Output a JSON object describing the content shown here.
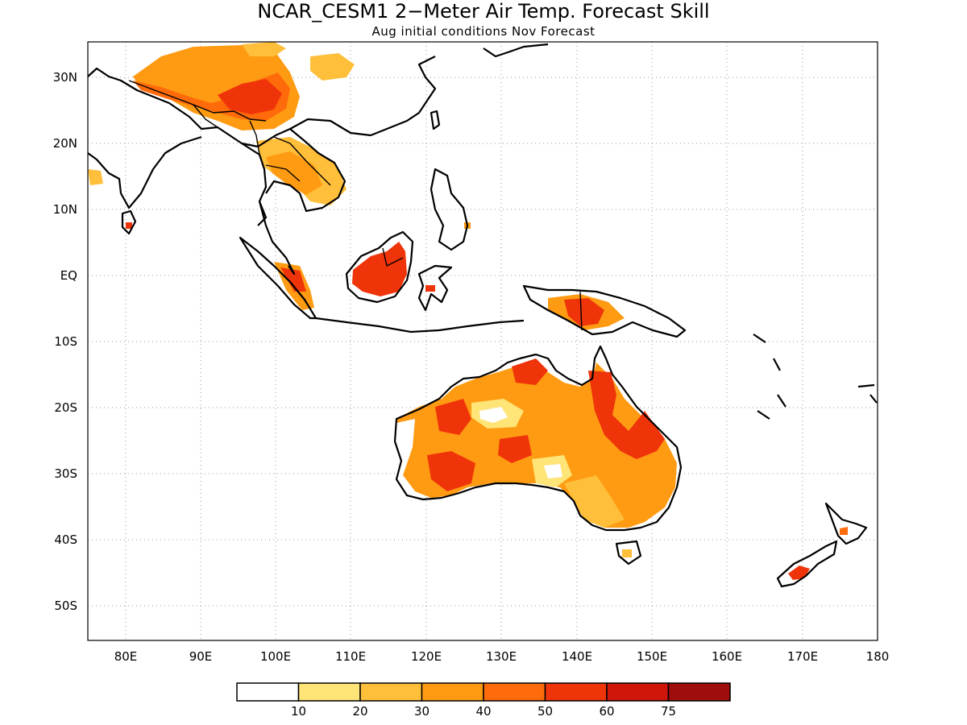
{
  "title": "NCAR_CESM1 2−Meter Air Temp. Forecast Skill",
  "subtitle": "Aug initial conditions  Nov Forecast",
  "map": {
    "lat_labels": [
      "30N",
      "20N",
      "10N",
      "EQ",
      "10S",
      "20S",
      "30S",
      "40S",
      "50S"
    ],
    "lon_labels": [
      "80E",
      "90E",
      "100E",
      "110E",
      "120E",
      "130E",
      "140E",
      "150E",
      "160E",
      "170E",
      "180"
    ]
  },
  "colorbar": {
    "colors": [
      "#ffffff",
      "#ffe477",
      "#ffbf3a",
      "#ff9b12",
      "#ff6b0a",
      "#f0340a",
      "#d0150a",
      "#a00d0d"
    ],
    "labels": [
      "10",
      "20",
      "30",
      "40",
      "50",
      "60",
      "75"
    ]
  }
}
